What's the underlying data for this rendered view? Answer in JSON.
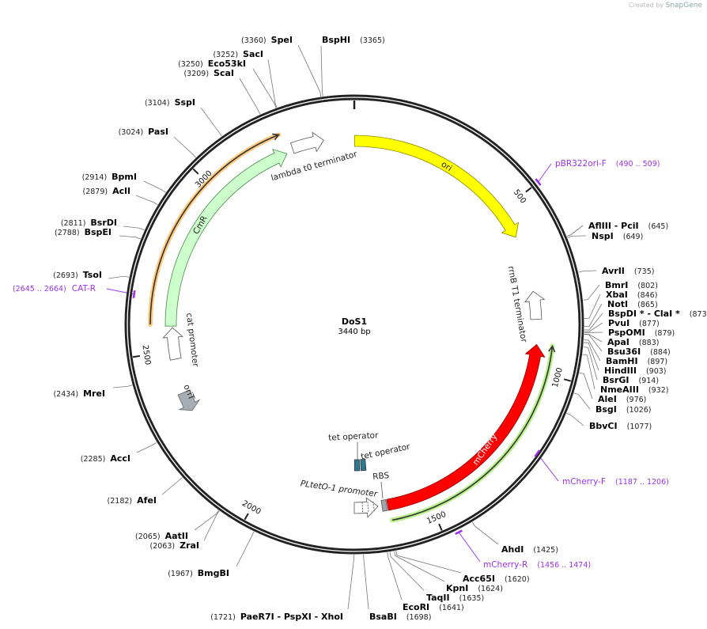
{
  "header": {
    "credit": "Created by",
    "brand": "SnapGene"
  },
  "plasmid": {
    "name": "DoS1",
    "length_label": "3440 bp",
    "length": 3440
  },
  "ticks": [
    {
      "bp": 500,
      "label": "500"
    },
    {
      "bp": 1000,
      "label": "1000"
    },
    {
      "bp": 1500,
      "label": "1500"
    },
    {
      "bp": 2000,
      "label": "2000"
    },
    {
      "bp": 2500,
      "label": "2500"
    },
    {
      "bp": 3000,
      "label": "3000"
    }
  ],
  "features": [
    {
      "name": "ori",
      "start": 1,
      "end": 589,
      "strand": 1,
      "color": "#ffff00"
    },
    {
      "name": "rrnB T1 terminator",
      "start": 760,
      "end": 845,
      "strand": -1,
      "color": "#ffffff"
    },
    {
      "name": "mCherry",
      "start": 920,
      "end": 1620,
      "strand": -1,
      "color": "#ff0000"
    },
    {
      "name": "RBS",
      "start": 1623,
      "end": 1637,
      "strand": 0,
      "color": "#a0a4ac"
    },
    {
      "name": "PLtetO-1 promoter",
      "start": 1649,
      "end": 1720,
      "strand": -1,
      "color": "#ffffff"
    },
    {
      "name": "tet operator",
      "start": 1700,
      "end": 1719,
      "strand": 0,
      "color": "#31788c"
    },
    {
      "name": "tet operator",
      "start": 1676,
      "end": 1695,
      "strand": 0,
      "color": "#31788c"
    },
    {
      "name": "oriT",
      "start": 2313,
      "end": 2372,
      "strand": -1,
      "color": "#a5adb5"
    },
    {
      "name": "cat promoter",
      "start": 2475,
      "end": 2570,
      "strand": 1,
      "color": "#ffffff"
    },
    {
      "name": "CmR",
      "start": 2575,
      "end": 3234,
      "strand": 1,
      "color": "#ccffcc"
    },
    {
      "name": "lambda t0 terminator",
      "start": 3255,
      "end": 3350,
      "strand": 1,
      "color": "#ffffff"
    }
  ],
  "orfs": [
    {
      "start": 920,
      "end": 1615,
      "strand": -1,
      "color": "#b8f08a"
    },
    {
      "start": 2580,
      "end": 3232,
      "strand": 1,
      "color": "#ffc97e"
    }
  ],
  "enzymes": [
    {
      "name": "SpeI",
      "pos": "(3360)",
      "bp": 3360
    },
    {
      "name": "BspHI",
      "pos": "(3365)",
      "bp": 3365
    },
    {
      "name": "SacI",
      "pos": "(3252)",
      "bp": 3252
    },
    {
      "name": "Eco53kI",
      "pos": "(3250)",
      "bp": 3250
    },
    {
      "name": "ScaI",
      "pos": "(3209)",
      "bp": 3209
    },
    {
      "name": "SspI",
      "pos": "(3104)",
      "bp": 3104
    },
    {
      "name": "PasI",
      "pos": "(3024)",
      "bp": 3024
    },
    {
      "name": "BpmI",
      "pos": "(2914)",
      "bp": 2914
    },
    {
      "name": "AclI",
      "pos": "(2879)",
      "bp": 2879
    },
    {
      "name": "BsrDI",
      "pos": "(2811)",
      "bp": 2811
    },
    {
      "name": "BspEI",
      "pos": "(2788)",
      "bp": 2788
    },
    {
      "name": "TsoI",
      "pos": "(2693)",
      "bp": 2693
    },
    {
      "name": "MreI",
      "pos": "(2434)",
      "bp": 2434
    },
    {
      "name": "AccI",
      "pos": "(2285)",
      "bp": 2285
    },
    {
      "name": "AfeI",
      "pos": "(2182)",
      "bp": 2182
    },
    {
      "name": "AatII",
      "pos": "(2065)",
      "bp": 2065
    },
    {
      "name": "ZraI",
      "pos": "(2063)",
      "bp": 2063
    },
    {
      "name": "BmgBI",
      "pos": "(1967)",
      "bp": 1967
    },
    {
      "name": "PaeR7I  - PspXI  - XhoI",
      "pos": "(1721)",
      "bp": 1721
    },
    {
      "name": "BsaBI",
      "pos": "(1698)",
      "bp": 1698
    },
    {
      "name": "EcoRI",
      "pos": "(1641)",
      "bp": 1641
    },
    {
      "name": "TaqII",
      "pos": "(1635)",
      "bp": 1635
    },
    {
      "name": "KpnI",
      "pos": "(1624)",
      "bp": 1624
    },
    {
      "name": "Acc65I",
      "pos": "(1620)",
      "bp": 1620
    },
    {
      "name": "AhdI",
      "pos": "(1425)",
      "bp": 1425
    },
    {
      "name": "BbvCI",
      "pos": "(1077)",
      "bp": 1077
    },
    {
      "name": "BsgI",
      "pos": "(1026)",
      "bp": 1026
    },
    {
      "name": "AleI",
      "pos": "(976)",
      "bp": 976
    },
    {
      "name": "NmeAIII",
      "pos": "(932)",
      "bp": 932
    },
    {
      "name": "BsrGI",
      "pos": "(914)",
      "bp": 914
    },
    {
      "name": "HindIII",
      "pos": "(903)",
      "bp": 903
    },
    {
      "name": "BamHI",
      "pos": "(897)",
      "bp": 897
    },
    {
      "name": "Bsu36I",
      "pos": "(884)",
      "bp": 884
    },
    {
      "name": "ApaI",
      "pos": "(883)",
      "bp": 883
    },
    {
      "name": "PspOMI",
      "pos": "(879)",
      "bp": 879
    },
    {
      "name": "PvuI",
      "pos": "(877)",
      "bp": 877
    },
    {
      "name": "BspDI *  - ClaI *",
      "pos": "(873)",
      "bp": 873
    },
    {
      "name": "NotI",
      "pos": "(865)",
      "bp": 865
    },
    {
      "name": "XbaI",
      "pos": "(846)",
      "bp": 846
    },
    {
      "name": "BmrI",
      "pos": "(802)",
      "bp": 802
    },
    {
      "name": "AvrII",
      "pos": "(735)",
      "bp": 735
    },
    {
      "name": "NspI",
      "pos": "(649)",
      "bp": 649
    },
    {
      "name": "AflIII  - PciI",
      "pos": "(645)",
      "bp": 645
    }
  ],
  "primers": [
    {
      "name": "pBR322ori-F",
      "range": "(490 .. 509)",
      "start": 490,
      "end": 509
    },
    {
      "name": "CAT-R",
      "range": "(2645 .. 2664)",
      "start": 2645,
      "end": 2664
    },
    {
      "name": "mCherry-F",
      "range": "(1187 .. 1206)",
      "start": 1187,
      "end": 1206
    },
    {
      "name": "mCherry-R",
      "range": "(1456 .. 1474)",
      "start": 1456,
      "end": 1474
    }
  ],
  "colors": {
    "ring": "#222222",
    "primer": "#9b30e8",
    "orf_line": "#333333"
  }
}
